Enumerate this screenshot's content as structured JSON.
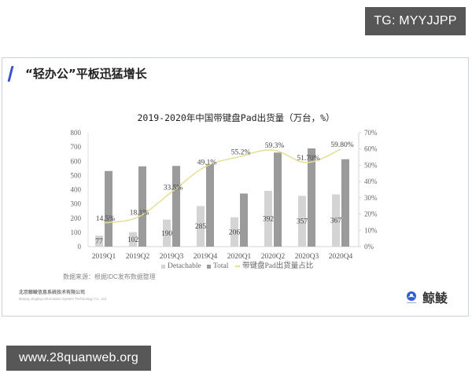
{
  "watermarks": {
    "top": "TG: MYYJJPP",
    "bottom": "www.28quanweb.org"
  },
  "slide": {
    "title": "“轻办公”平板迅猛增长",
    "source": "数据来源：根据IDC发布数据整理",
    "company_cn": "北京鲸鲮信息系统技术有限公司",
    "company_en": "Beijing Jingling Information System Technology Co., Ltd",
    "logo_text": "鲸鲮",
    "accent_color": "#3b4fd1"
  },
  "chart_data": {
    "type": "bar",
    "title": "2019-2020年中国带键盘Pad出货量（万台，%）",
    "xlabel": "",
    "ylabel": "",
    "categories": [
      "2019Q1",
      "2019Q2",
      "2019Q3",
      "2019Q4",
      "2020Q1",
      "2020Q2",
      "2020Q3",
      "2020Q4"
    ],
    "series": [
      {
        "name": "Detachable",
        "type": "bar",
        "axis": "left",
        "values": [
          77,
          102,
          190,
          285,
          206,
          392,
          357,
          367
        ],
        "labels": [
          "77",
          "102",
          "190",
          "285",
          "206",
          "392",
          "357",
          "367"
        ],
        "color": "#d4d4d4"
      },
      {
        "name": "Total",
        "type": "bar",
        "axis": "left",
        "values": [
          531,
          564,
          567,
          580,
          373,
          661,
          690,
          614
        ],
        "color": "#9b9b9b"
      },
      {
        "name": "带键盘Pad出货量占比",
        "type": "line",
        "axis": "right",
        "values": [
          14.5,
          18.1,
          33.5,
          49.1,
          55.2,
          59.3,
          51.7,
          59.8
        ],
        "labels": [
          "14.5%",
          "18.1%",
          "33.5%",
          "49.1%",
          "55.2%",
          "59.3%",
          "51.70%",
          "59.80%"
        ],
        "color": "#e4df96"
      }
    ],
    "yaxis_left": {
      "min": 0,
      "max": 800,
      "step": 100,
      "ticks": [
        "0",
        "100",
        "200",
        "300",
        "400",
        "500",
        "600",
        "700",
        "800"
      ]
    },
    "yaxis_right": {
      "min": 0,
      "max": 70,
      "step": 10,
      "ticks": [
        "0%",
        "10%",
        "20%",
        "30%",
        "40%",
        "50%",
        "60%",
        "70%"
      ]
    },
    "grid": false,
    "legend_position": "bottom"
  }
}
